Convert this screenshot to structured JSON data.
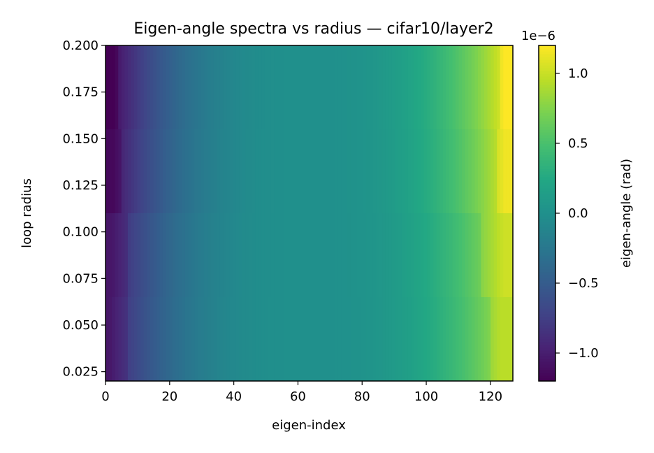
{
  "chart_data": {
    "type": "heatmap",
    "title": "Eigen-angle spectra vs radius — cifar10/layer2",
    "xlabel": "eigen-index",
    "ylabel": "loop radius",
    "xlim": [
      0,
      127
    ],
    "ylim": [
      0.02,
      0.2
    ],
    "xticks": [
      "0",
      "20",
      "40",
      "60",
      "80",
      "100",
      "120"
    ],
    "yticks": [
      "0.025",
      "0.050",
      "0.075",
      "0.100",
      "0.125",
      "0.150",
      "0.175",
      "0.200"
    ],
    "n_columns": 128,
    "rows": [
      {
        "y_range": [
          0.02,
          0.065
        ],
        "min": -1.05,
        "max": 0.95,
        "edge_left": 7,
        "edge_right": 120
      },
      {
        "y_range": [
          0.065,
          0.11
        ],
        "min": -1.05,
        "max": 1.02,
        "edge_left": 7,
        "edge_right": 117
      },
      {
        "y_range": [
          0.11,
          0.155
        ],
        "min": -1.15,
        "max": 1.15,
        "edge_left": 5,
        "edge_right": 122
      },
      {
        "y_range": [
          0.155,
          0.2
        ],
        "min": -1.2,
        "max": 1.2,
        "edge_left": 4,
        "edge_right": 123
      }
    ],
    "colormap": "viridis",
    "colorbar": {
      "label": "eigen-angle (rad)",
      "range": [
        -1.2,
        1.2
      ],
      "ticks": [
        "−1.0",
        "−0.5",
        "0.0",
        "0.5",
        "1.0"
      ],
      "offset_text": "1e−6"
    }
  }
}
